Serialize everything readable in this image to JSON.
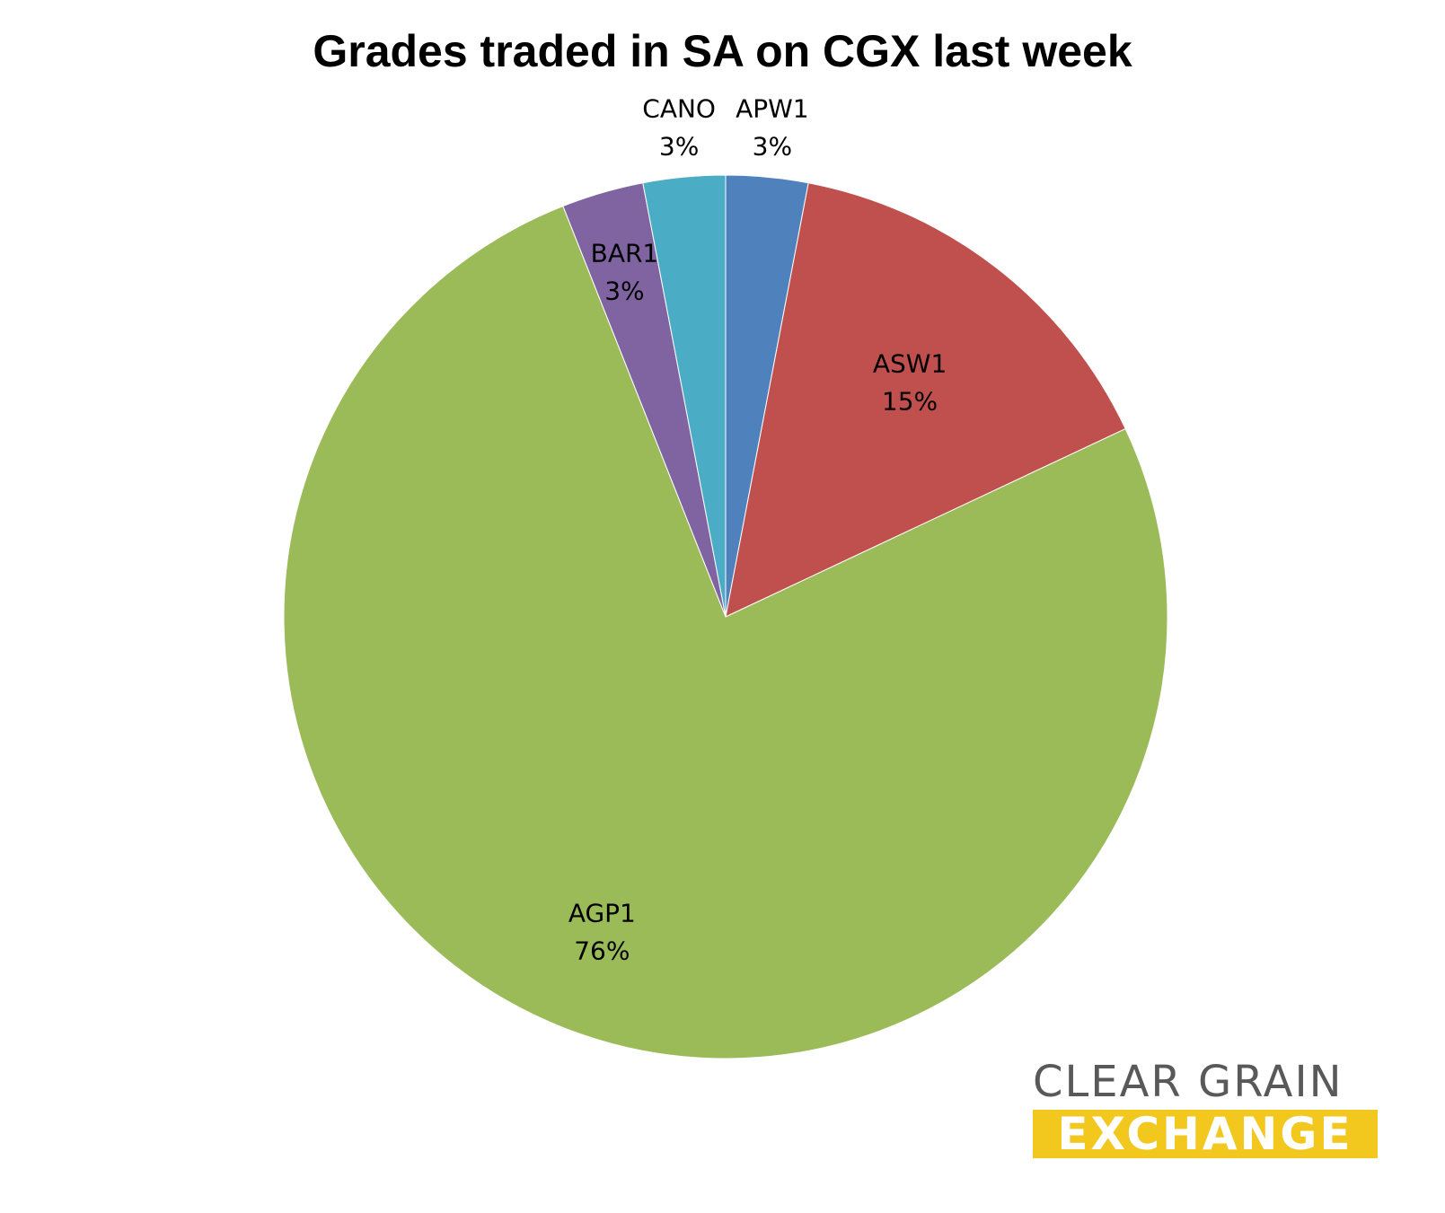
{
  "chart_data": {
    "type": "pie",
    "title": "Grades traded in SA on CGX last week",
    "slices": [
      {
        "label": "APW1",
        "value": 3,
        "display": "3%",
        "color": "#4f81bd"
      },
      {
        "label": "ASW1",
        "value": 15,
        "display": "15%",
        "color": "#c0504d"
      },
      {
        "label": "AGP1",
        "value": 76,
        "display": "76%",
        "color": "#9bbb59"
      },
      {
        "label": "BAR1",
        "value": 3,
        "display": "3%",
        "color": "#8064a2"
      },
      {
        "label": "CANO",
        "value": 3,
        "display": "3%",
        "color": "#4bacc6"
      }
    ],
    "start_angle_deg": 0,
    "direction": "clockwise",
    "legend": "none"
  },
  "logo": {
    "line1": "CLEAR GRAIN",
    "line2": "EXCHANGE",
    "accent_color": "#f2c71e",
    "text_color": "#595959"
  }
}
